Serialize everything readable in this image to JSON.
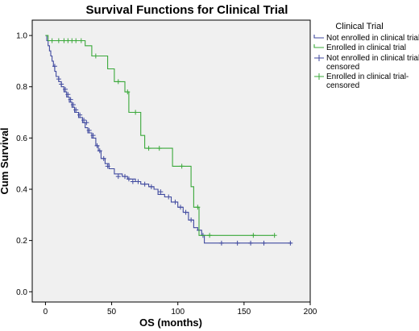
{
  "chart_data": {
    "type": "line",
    "subtype": "kaplan-meier-step",
    "title": "Survival Functions for Clinical Trial",
    "xlabel": "OS (months)",
    "ylabel": "Cum Survival",
    "xlim": [
      -10,
      200
    ],
    "ylim": [
      -0.04,
      1.06
    ],
    "x_ticks": [
      0,
      50,
      100,
      150,
      200
    ],
    "y_ticks": [
      0.0,
      0.2,
      0.4,
      0.6,
      0.8,
      1.0
    ],
    "y_tick_labels": [
      "0.0",
      "0.2",
      "0.4",
      "0.6",
      "0.8",
      "1.0"
    ],
    "plot_background": "#f0f0f0",
    "grid": false,
    "legend": {
      "title": "Clinical Trial",
      "placement": "right",
      "entries": [
        {
          "label": "Not enrolled in clinical trial",
          "marker": "line",
          "color": "#404a9f"
        },
        {
          "label": "Enrolled in clinical trial",
          "marker": "line",
          "color": "#3aa83a"
        },
        {
          "label": "Not enrolled in clinical trial-censored",
          "marker": "plus",
          "color": "#404a9f"
        },
        {
          "label": "Enrolled in clinical trial-censored",
          "marker": "plus",
          "color": "#3aa83a"
        }
      ]
    },
    "series": [
      {
        "name": "Not enrolled in clinical trial",
        "color": "#404a9f",
        "steps": [
          [
            0,
            1.0
          ],
          [
            1,
            0.98
          ],
          [
            2,
            0.96
          ],
          [
            3,
            0.94
          ],
          [
            4,
            0.92
          ],
          [
            5,
            0.9
          ],
          [
            6,
            0.88
          ],
          [
            7,
            0.86
          ],
          [
            8,
            0.84
          ],
          [
            10,
            0.82
          ],
          [
            12,
            0.8
          ],
          [
            14,
            0.78
          ],
          [
            16,
            0.76
          ],
          [
            18,
            0.74
          ],
          [
            20,
            0.72
          ],
          [
            22,
            0.7
          ],
          [
            25,
            0.68
          ],
          [
            28,
            0.66
          ],
          [
            30,
            0.64
          ],
          [
            32,
            0.62
          ],
          [
            35,
            0.6
          ],
          [
            38,
            0.57
          ],
          [
            40,
            0.55
          ],
          [
            42,
            0.52
          ],
          [
            45,
            0.5
          ],
          [
            48,
            0.48
          ],
          [
            52,
            0.46
          ],
          [
            58,
            0.45
          ],
          [
            62,
            0.44
          ],
          [
            68,
            0.43
          ],
          [
            72,
            0.42
          ],
          [
            78,
            0.41
          ],
          [
            82,
            0.4
          ],
          [
            85,
            0.38
          ],
          [
            90,
            0.37
          ],
          [
            95,
            0.35
          ],
          [
            100,
            0.33
          ],
          [
            104,
            0.31
          ],
          [
            108,
            0.28
          ],
          [
            112,
            0.25
          ],
          [
            115,
            0.24
          ],
          [
            118,
            0.22
          ],
          [
            120,
            0.19
          ],
          [
            186,
            0.19
          ]
        ],
        "censored": [
          [
            7,
            0.88
          ],
          [
            10,
            0.83
          ],
          [
            12,
            0.81
          ],
          [
            15,
            0.79
          ],
          [
            17,
            0.77
          ],
          [
            19,
            0.75
          ],
          [
            21,
            0.73
          ],
          [
            23,
            0.71
          ],
          [
            26,
            0.69
          ],
          [
            29,
            0.67
          ],
          [
            31,
            0.66
          ],
          [
            33,
            0.63
          ],
          [
            36,
            0.61
          ],
          [
            39,
            0.57
          ],
          [
            41,
            0.55
          ],
          [
            44,
            0.52
          ],
          [
            47,
            0.49
          ],
          [
            55,
            0.45
          ],
          [
            60,
            0.45
          ],
          [
            63,
            0.44
          ],
          [
            66,
            0.43
          ],
          [
            70,
            0.43
          ],
          [
            75,
            0.42
          ],
          [
            80,
            0.41
          ],
          [
            87,
            0.39
          ],
          [
            93,
            0.37
          ],
          [
            98,
            0.35
          ],
          [
            102,
            0.33
          ],
          [
            106,
            0.31
          ],
          [
            110,
            0.28
          ],
          [
            116,
            0.24
          ],
          [
            119,
            0.22
          ],
          [
            133,
            0.19
          ],
          [
            145,
            0.19
          ],
          [
            155,
            0.19
          ],
          [
            165,
            0.19
          ],
          [
            185,
            0.19
          ]
        ]
      },
      {
        "name": "Enrolled in clinical trial",
        "color": "#3aa83a",
        "steps": [
          [
            0,
            1.0
          ],
          [
            2,
            0.98
          ],
          [
            30,
            0.96
          ],
          [
            35,
            0.92
          ],
          [
            47,
            0.87
          ],
          [
            52,
            0.82
          ],
          [
            60,
            0.78
          ],
          [
            63,
            0.7
          ],
          [
            72,
            0.61
          ],
          [
            75,
            0.56
          ],
          [
            96,
            0.49
          ],
          [
            110,
            0.41
          ],
          [
            112,
            0.33
          ],
          [
            116,
            0.22
          ],
          [
            172,
            0.22
          ]
        ],
        "censored": [
          [
            5,
            0.98
          ],
          [
            10,
            0.98
          ],
          [
            14,
            0.98
          ],
          [
            17,
            0.98
          ],
          [
            20,
            0.98
          ],
          [
            23,
            0.98
          ],
          [
            27,
            0.98
          ],
          [
            38,
            0.92
          ],
          [
            55,
            0.82
          ],
          [
            62,
            0.78
          ],
          [
            68,
            0.7
          ],
          [
            78,
            0.56
          ],
          [
            86,
            0.56
          ],
          [
            103,
            0.49
          ],
          [
            115,
            0.33
          ],
          [
            124,
            0.22
          ],
          [
            157,
            0.22
          ],
          [
            173,
            0.22
          ]
        ]
      }
    ]
  }
}
